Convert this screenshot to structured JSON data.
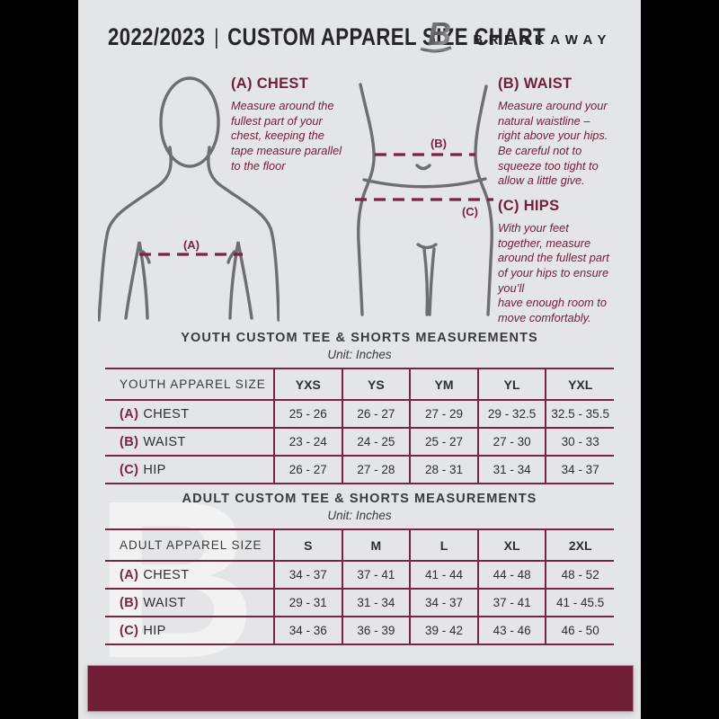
{
  "page": {
    "background": "#e4e5e7",
    "outer_background": "#000000",
    "accent_color": "#7b2340",
    "footer_color": "#701d38",
    "text_color": "#2e2e30"
  },
  "header": {
    "year": "2022/2023",
    "separator": "|",
    "title": "CUSTOM APPAREL SIZE CHART",
    "brand": "BREAKAWAY",
    "logo_letter": "B"
  },
  "measurements": {
    "chest": {
      "heading": "(A) CHEST",
      "body": "Measure around the\nfullest part of your\nchest, keeping the\ntape measure parallel\nto the floor"
    },
    "waist": {
      "heading": "(B) WAIST",
      "body": "Measure around your\nnatural waistline –\nright above your hips.\nBe careful not to\nsqueeze too tight to\nallow a little give."
    },
    "hips": {
      "heading": "(C) HIPS",
      "body": "With your feet\ntogether, measure\naround the fullest part\nof your hips to ensure\nyou’ll\nhave enough room to\nmove comfortably."
    }
  },
  "figure_labels": {
    "chest": "(A)",
    "waist": "(B)",
    "hip": "(C)"
  },
  "youth_table": {
    "title": "YOUTH CUSTOM TEE & SHORTS MEASUREMENTS",
    "unit": "Unit: Inches",
    "header_label": "YOUTH APPAREL SIZE",
    "sizes": [
      "YXS",
      "YS",
      "YM",
      "YL",
      "YXL"
    ],
    "rows": [
      {
        "key": "(A)",
        "label": "CHEST",
        "values": [
          "25 - 26",
          "26 - 27",
          "27 - 29",
          "29 - 32.5",
          "32.5 - 35.5"
        ]
      },
      {
        "key": "(B)",
        "label": "WAIST",
        "values": [
          "23 - 24",
          "24 - 25",
          "25 - 27",
          "27 - 30",
          "30 - 33"
        ]
      },
      {
        "key": "(C)",
        "label": "HIP",
        "values": [
          "26 - 27",
          "27 - 28",
          "28 - 31",
          "31 - 34",
          "34 - 37"
        ]
      }
    ]
  },
  "adult_table": {
    "title": "ADULT CUSTOM TEE & SHORTS MEASUREMENTS",
    "unit": "Unit: Inches",
    "header_label": "ADULT APPAREL SIZE",
    "sizes": [
      "S",
      "M",
      "L",
      "XL",
      "2XL"
    ],
    "rows": [
      {
        "key": "(A)",
        "label": "CHEST",
        "values": [
          "34 - 37",
          "37 - 41",
          "41 - 44",
          "44 - 48",
          "48 - 52"
        ]
      },
      {
        "key": "(B)",
        "label": "WAIST",
        "values": [
          "29 - 31",
          "31 - 34",
          "34 - 37",
          "37 - 41",
          "41 - 45.5"
        ]
      },
      {
        "key": "(C)",
        "label": "HIP",
        "values": [
          "34 - 36",
          "36 - 39",
          "39 - 42",
          "43 - 46",
          "46 - 50"
        ]
      }
    ]
  },
  "watermark_letter": "B"
}
